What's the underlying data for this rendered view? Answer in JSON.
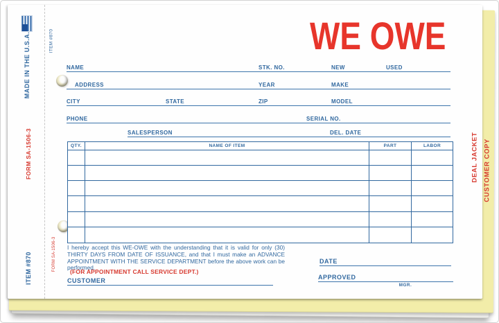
{
  "colors": {
    "blue": "#31689f",
    "red": "#d73a30",
    "title_red": "#e7352b",
    "yellow_copy": "#f2eda9"
  },
  "title": "WE OWE",
  "edge_left": {
    "made_in_usa": "MADE IN THE U.S.A.",
    "form_number": "FORM SA-1506-3",
    "item_number": "ITEM #870",
    "item_number_top": "ITEM #870",
    "form_number_small": "FORM SA-1506-3"
  },
  "edge_right": {
    "deal_jacket": "DEAL JACKET",
    "customer_copy": "CUSTOMER COPY"
  },
  "fields": {
    "name": "NAME",
    "stk_no": "STK. NO.",
    "new": "NEW",
    "used": "USED",
    "address": "ADDRESS",
    "year": "YEAR",
    "make": "MAKE",
    "city": "CITY",
    "state": "STATE",
    "zip": "ZIP",
    "model": "MODEL",
    "phone": "PHONE",
    "serial_no": "SERIAL NO.",
    "salesperson": "SALESPERSON",
    "del_date": "DEL. DATE"
  },
  "table": {
    "headers": [
      "QTY.",
      "NAME OF ITEM",
      "PART",
      "LABOR"
    ],
    "body_rows": 6
  },
  "disclaimer": "I hereby accept this WE-OWE with the understanding that it is valid for only (30) THIRTY DAYS FROM DATE OF ISSUANCE, and that I must make an ADVANCE APPOINTMENT WITH THE SERVICE DEPARTMENT before the above work can be performed.",
  "appointment_note": "(FOR APPOINTMENT CALL SERVICE DEPT.)",
  "signature": {
    "customer": "CUSTOMER",
    "date": "DATE",
    "approved": "APPROVED",
    "mgr": "MGR."
  }
}
